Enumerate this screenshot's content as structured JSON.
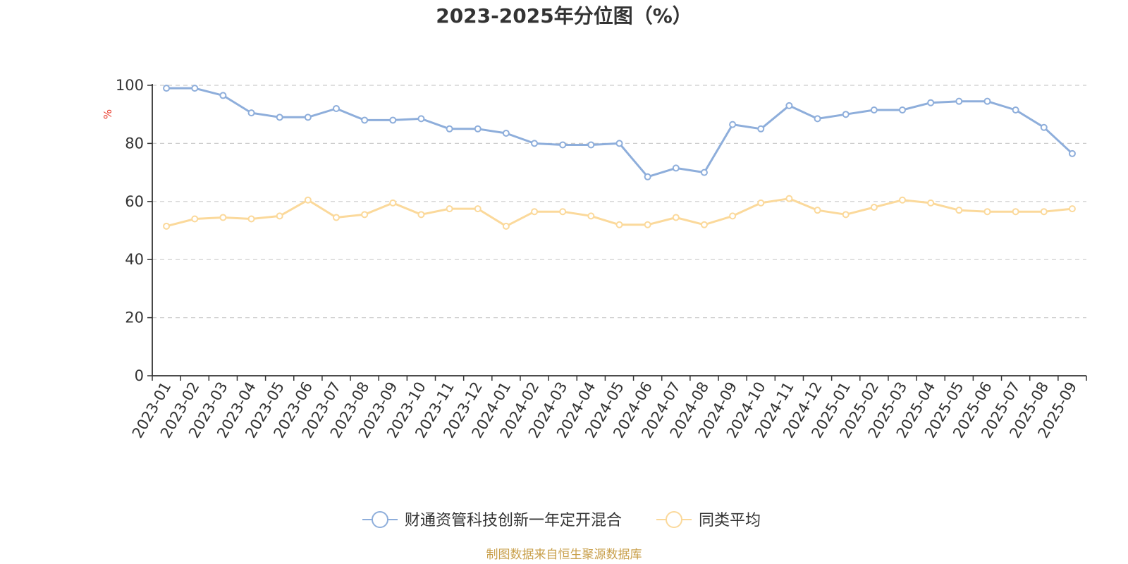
{
  "chart_data": {
    "type": "line",
    "title": "2023-2025年分位图（%）",
    "ylabel": "%",
    "xlabel": "",
    "ylim": [
      0,
      100
    ],
    "yticks": [
      0,
      20,
      40,
      60,
      80,
      100
    ],
    "grid": "horizontal dashed",
    "legend_position": "bottom-center",
    "categories": [
      "2023-01",
      "2023-02",
      "2023-03",
      "2023-04",
      "2023-05",
      "2023-06",
      "2023-07",
      "2023-08",
      "2023-09",
      "2023-10",
      "2023-11",
      "2023-12",
      "2024-01",
      "2024-02",
      "2024-03",
      "2024-04",
      "2024-05",
      "2024-06",
      "2024-07",
      "2024-08",
      "2024-09",
      "2024-10",
      "2024-11",
      "2024-12",
      "2025-01",
      "2025-02",
      "2025-03",
      "2025-04",
      "2025-05",
      "2025-06",
      "2025-07",
      "2025-08",
      "2025-09"
    ],
    "series": [
      {
        "name": "财通资管科技创新一年定开混合",
        "color": "#8eaedb",
        "values": [
          99,
          99,
          96.5,
          90.5,
          89,
          89,
          92,
          88,
          88,
          88.5,
          85,
          85,
          83.5,
          80,
          79.5,
          79.5,
          80,
          68.5,
          71.5,
          70,
          86.5,
          85,
          93,
          88.5,
          90,
          91.5,
          91.5,
          94,
          94.5,
          94.5,
          91.5,
          85.5,
          76.5
        ]
      },
      {
        "name": "同类平均",
        "color": "#fbd99b",
        "values": [
          51.5,
          54,
          54.5,
          54,
          55,
          60.5,
          54.5,
          55.5,
          59.5,
          55.5,
          57.5,
          57.5,
          51.5,
          56.5,
          56.5,
          55,
          52,
          52,
          54.5,
          52,
          55,
          59.5,
          61,
          57,
          55.5,
          58,
          60.5,
          59.5,
          57,
          56.5,
          56.5,
          56.5,
          57.5
        ]
      }
    ],
    "unit_color": "#e83828"
  },
  "source": {
    "text": "制图数据来自恒生聚源数据库",
    "color": "#c9a04c"
  }
}
